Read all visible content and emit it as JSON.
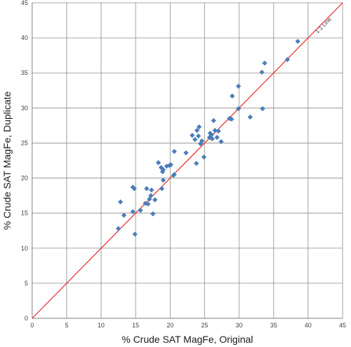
{
  "chart_data": {
    "type": "scatter",
    "xlabel": "% Crude SAT MagFe,  Original",
    "ylabel": "% Crude SAT MagFe, Duplicate",
    "xlim": [
      0,
      45
    ],
    "ylim": [
      0,
      45
    ],
    "x_ticks": [
      0,
      5,
      10,
      15,
      20,
      25,
      30,
      35,
      40,
      45
    ],
    "y_ticks": [
      0,
      5,
      10,
      15,
      20,
      25,
      30,
      35,
      40,
      45
    ],
    "grid": true,
    "legend": "none",
    "reference_line": {
      "label": "1:1 Line",
      "slope": 1,
      "intercept": 0,
      "color": "#e8272a"
    },
    "marker": {
      "shape": "diamond",
      "color": "#4a7ebb"
    },
    "points": [
      [
        12.5,
        12.8
      ],
      [
        12.8,
        16.6
      ],
      [
        13.3,
        14.7
      ],
      [
        14.6,
        15.2
      ],
      [
        14.6,
        18.7
      ],
      [
        14.8,
        18.5
      ],
      [
        14.9,
        12.0
      ],
      [
        15.7,
        15.4
      ],
      [
        16.4,
        16.4
      ],
      [
        16.6,
        18.5
      ],
      [
        16.8,
        16.3
      ],
      [
        17.0,
        17.0
      ],
      [
        17.2,
        17.5
      ],
      [
        17.3,
        18.3
      ],
      [
        17.5,
        14.9
      ],
      [
        17.8,
        16.9
      ],
      [
        18.3,
        22.2
      ],
      [
        18.7,
        21.5
      ],
      [
        18.8,
        18.5
      ],
      [
        18.9,
        20.9
      ],
      [
        19.0,
        19.7
      ],
      [
        19.0,
        21.2
      ],
      [
        19.5,
        21.7
      ],
      [
        19.9,
        21.8
      ],
      [
        20.1,
        21.9
      ],
      [
        20.5,
        20.4
      ],
      [
        20.6,
        20.5
      ],
      [
        20.6,
        23.8
      ],
      [
        22.3,
        23.6
      ],
      [
        23.2,
        26.1
      ],
      [
        23.6,
        25.5
      ],
      [
        23.8,
        22.1
      ],
      [
        23.9,
        26.8
      ],
      [
        24.1,
        26.0
      ],
      [
        24.2,
        27.3
      ],
      [
        24.4,
        24.9
      ],
      [
        24.6,
        25.3
      ],
      [
        24.9,
        23.0
      ],
      [
        25.7,
        25.8
      ],
      [
        25.8,
        26.4
      ],
      [
        26.0,
        26.2
      ],
      [
        26.1,
        25.6
      ],
      [
        26.3,
        28.2
      ],
      [
        26.5,
        26.8
      ],
      [
        26.8,
        25.8
      ],
      [
        27.0,
        26.7
      ],
      [
        27.4,
        25.2
      ],
      [
        28.6,
        28.5
      ],
      [
        28.9,
        28.4
      ],
      [
        29.0,
        31.7
      ],
      [
        29.9,
        33.1
      ],
      [
        29.9,
        29.9
      ],
      [
        31.6,
        28.7
      ],
      [
        33.3,
        35.1
      ],
      [
        33.4,
        29.9
      ],
      [
        33.7,
        36.4
      ],
      [
        37.0,
        36.9
      ],
      [
        38.5,
        39.5
      ]
    ]
  }
}
